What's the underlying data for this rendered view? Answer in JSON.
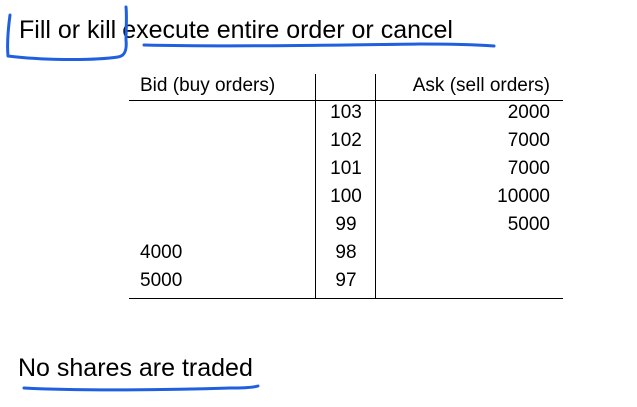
{
  "title": {
    "term": "Fill or kill",
    "description": "execute entire order or cancel"
  },
  "order_book": {
    "headers": {
      "bid": "Bid (buy orders)",
      "price": "",
      "ask": "Ask (sell orders)"
    },
    "rows": [
      {
        "bid": "",
        "price": "103",
        "ask": "2000"
      },
      {
        "bid": "",
        "price": "102",
        "ask": "7000"
      },
      {
        "bid": "",
        "price": "101",
        "ask": "7000"
      },
      {
        "bid": "",
        "price": "100",
        "ask": "10000"
      },
      {
        "bid": "",
        "price": "99",
        "ask": "5000"
      },
      {
        "bid": "4000",
        "price": "98",
        "ask": ""
      },
      {
        "bid": "5000",
        "price": "97",
        "ask": ""
      }
    ]
  },
  "conclusion": "No shares are traded",
  "colors": {
    "annotation_ink": "#1f5fe0",
    "text": "#000000"
  }
}
